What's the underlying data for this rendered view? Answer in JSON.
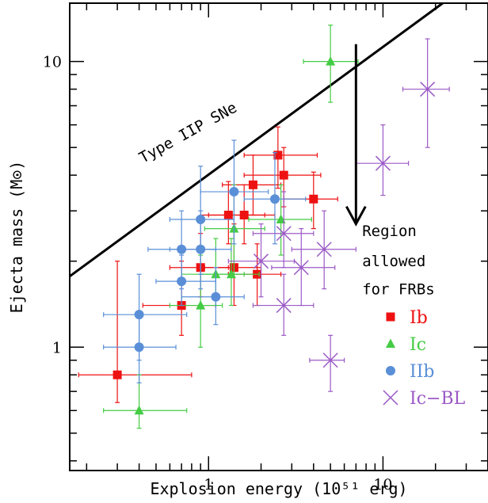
{
  "chart_data": {
    "type": "scatter",
    "xlabel": "Explosion energy (10⁵¹ erg)",
    "ylabel": "Ejecta mass (M⊙)",
    "xscale": "log",
    "yscale": "log",
    "xlim": [
      0.16,
      40
    ],
    "ylim": [
      0.37,
      16
    ],
    "grid": false,
    "x_tick_labels": [
      {
        "value": 1,
        "label": "1"
      },
      {
        "value": 10,
        "label": "10"
      }
    ],
    "y_tick_labels": [
      {
        "value": 1,
        "label": "1"
      },
      {
        "value": 10,
        "label": "10"
      }
    ],
    "legend_position": "lower-right",
    "series": [
      {
        "name": "Ib",
        "marker": "square",
        "color": "#ee1111",
        "points": [
          {
            "x": 0.3,
            "y": 0.8,
            "xerr": [
              0.12,
              0.5
            ],
            "yerr": [
              0.16,
              1.2
            ]
          },
          {
            "x": 0.7,
            "y": 1.4,
            "xerr": [
              0.28,
              0.4
            ],
            "yerr": [
              0.3,
              0.6
            ]
          },
          {
            "x": 0.9,
            "y": 1.9,
            "xerr": [
              0.3,
              0.4
            ],
            "yerr": [
              0.4,
              0.6
            ]
          },
          {
            "x": 1.3,
            "y": 2.9,
            "xerr": [
              0.4,
              0.8
            ],
            "yerr": [
              0.6,
              0.9
            ]
          },
          {
            "x": 1.4,
            "y": 1.9,
            "xerr": [
              0.45,
              0.6
            ],
            "yerr": [
              0.5,
              0.8
            ]
          },
          {
            "x": 1.6,
            "y": 2.9,
            "xerr": [
              0.6,
              0.8
            ],
            "yerr": [
              0.6,
              0.8
            ]
          },
          {
            "x": 1.8,
            "y": 3.7,
            "xerr": [
              0.6,
              0.8
            ],
            "yerr": [
              0.8,
              1.0
            ]
          },
          {
            "x": 1.9,
            "y": 1.8,
            "xerr": [
              0.6,
              0.7
            ],
            "yerr": [
              0.4,
              0.5
            ]
          },
          {
            "x": 2.5,
            "y": 4.7,
            "xerr": [
              0.9,
              1.7
            ],
            "yerr": [
              1.1,
              1.2
            ]
          },
          {
            "x": 2.7,
            "y": 4.0,
            "xerr": [
              1.1,
              1.7
            ],
            "yerr": [
              0.9,
              1.0
            ]
          },
          {
            "x": 4.0,
            "y": 3.3,
            "xerr": [
              1.3,
              1.5
            ],
            "yerr": [
              0.7,
              0.8
            ]
          }
        ]
      },
      {
        "name": "Ic",
        "marker": "triangle",
        "color": "#44cc44",
        "points": [
          {
            "x": 0.4,
            "y": 0.6,
            "xerr": [
              0.15,
              0.35
            ],
            "yerr": [
              0.08,
              0.2
            ]
          },
          {
            "x": 0.9,
            "y": 1.4,
            "xerr": [
              0.3,
              0.3
            ],
            "yerr": [
              0.4,
              0.7
            ]
          },
          {
            "x": 1.1,
            "y": 1.8,
            "xerr": [
              0.4,
              0.5
            ],
            "yerr": [
              0.4,
              0.6
            ]
          },
          {
            "x": 1.35,
            "y": 1.8,
            "xerr": [
              0.45,
              0.6
            ],
            "yerr": [
              0.4,
              0.6
            ]
          },
          {
            "x": 1.4,
            "y": 2.6,
            "xerr": [
              0.45,
              0.7
            ],
            "yerr": [
              0.8,
              1.1
            ]
          },
          {
            "x": 2.6,
            "y": 2.8,
            "xerr": [
              0.9,
              1.3
            ],
            "yerr": [
              0.7,
              0.9
            ]
          },
          {
            "x": 5.0,
            "y": 10.0,
            "xerr": [
              1.5,
              2.2
            ],
            "yerr": [
              2.8,
              3.4
            ]
          }
        ]
      },
      {
        "name": "IIb",
        "marker": "circle",
        "color": "#5a8fd8",
        "points": [
          {
            "x": 0.4,
            "y": 1.0,
            "xerr": [
              0.15,
              0.25
            ],
            "yerr": [
              0.25,
              0.3
            ]
          },
          {
            "x": 0.4,
            "y": 1.3,
            "xerr": [
              0.15,
              0.35
            ],
            "yerr": [
              0.4,
              0.5
            ]
          },
          {
            "x": 0.7,
            "y": 1.7,
            "xerr": [
              0.2,
              0.4
            ],
            "yerr": [
              0.3,
              0.4
            ]
          },
          {
            "x": 0.7,
            "y": 2.2,
            "xerr": [
              0.25,
              0.4
            ],
            "yerr": [
              0.6,
              0.8
            ]
          },
          {
            "x": 0.9,
            "y": 2.2,
            "xerr": [
              0.3,
              0.45
            ],
            "yerr": [
              0.6,
              0.8
            ]
          },
          {
            "x": 0.9,
            "y": 2.8,
            "xerr": [
              0.3,
              0.5
            ],
            "yerr": [
              1.0,
              1.5
            ]
          },
          {
            "x": 1.1,
            "y": 1.5,
            "xerr": [
              0.4,
              0.5
            ],
            "yerr": [
              0.3,
              0.4
            ]
          },
          {
            "x": 1.4,
            "y": 3.5,
            "xerr": [
              0.5,
              0.8
            ],
            "yerr": [
              1.2,
              1.8
            ]
          },
          {
            "x": 2.4,
            "y": 3.3,
            "xerr": [
              0.8,
              1.2
            ],
            "yerr": [
              1.0,
              1.5
            ]
          }
        ]
      },
      {
        "name": "Ic−BL",
        "marker": "x",
        "color": "#9b59c6",
        "points": [
          {
            "x": 2.0,
            "y": 2.0,
            "xerr": [
              0.7,
              1.1
            ],
            "yerr": [
              0.5,
              0.7
            ]
          },
          {
            "x": 2.7,
            "y": 2.5,
            "xerr": [
              0.9,
              1.3
            ],
            "yerr": [
              0.6,
              1.0
            ]
          },
          {
            "x": 2.7,
            "y": 1.4,
            "xerr": [
              0.9,
              1.3
            ],
            "yerr": [
              0.3,
              0.4
            ]
          },
          {
            "x": 3.4,
            "y": 1.9,
            "xerr": [
              1.1,
              1.9
            ],
            "yerr": [
              0.5,
              0.7
            ]
          },
          {
            "x": 4.6,
            "y": 2.2,
            "xerr": [
              1.6,
              2.4
            ],
            "yerr": [
              0.6,
              0.8
            ]
          },
          {
            "x": 5.0,
            "y": 0.9,
            "xerr": [
              1.2,
              1.0
            ],
            "yerr": [
              0.2,
              0.2
            ]
          },
          {
            "x": 10.0,
            "y": 4.4,
            "xerr": [
              3.0,
              4.0
            ],
            "yerr": [
              1.0,
              1.6
            ]
          },
          {
            "x": 18.0,
            "y": 8.0,
            "xerr": [
              5.0,
              6.0
            ],
            "yerr": [
              3.0,
              4.0
            ]
          }
        ]
      }
    ],
    "boundary_line": {
      "points": [
        [
          0.16,
          1.77
        ],
        [
          22,
          16
        ]
      ]
    },
    "arrow": {
      "x": 7.0,
      "y_from": 11.5,
      "y_to": 2.7
    },
    "annotations": [
      {
        "text": "Type IIP SNe",
        "x": 0.42,
        "y": 4.4,
        "rotate": -29
      },
      {
        "text": "Region",
        "x": 7.6,
        "y": 2.45
      },
      {
        "text": "allowed",
        "x": 7.6,
        "y": 1.92
      },
      {
        "text": "for FRBs",
        "x": 7.6,
        "y": 1.53
      }
    ]
  }
}
